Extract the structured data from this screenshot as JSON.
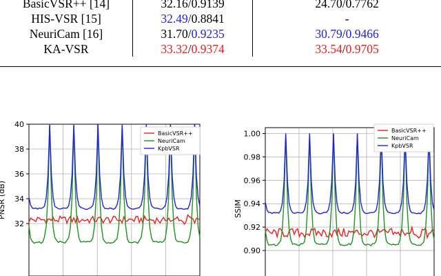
{
  "table": {
    "rows": [
      {
        "method": "BasicVSR++ [14]",
        "a_psnr": "32.16",
        "a_ssim": "0.9139",
        "b_psnr": "24.70",
        "b_ssim": "0.7762",
        "b_text": ""
      },
      {
        "method": "HIS-VSR [15]",
        "a_psnr": "32.49",
        "a_ssim": "0.8841",
        "b_psnr": "",
        "b_ssim": "",
        "b_text": "-"
      },
      {
        "method": "NeuriCam [16]",
        "a_psnr": "31.70",
        "a_ssim": "0.9235",
        "b_psnr": "30.79",
        "b_ssim": "0.9466",
        "b_text": ""
      },
      {
        "method": "KA-VSR",
        "a_psnr": "33.32",
        "a_ssim": "0.9374",
        "b_psnr": "33.54",
        "b_ssim": "0.9705",
        "b_text": ""
      }
    ],
    "separator": "/"
  },
  "colors": {
    "highlight_best": "#e8201f",
    "highlight_second": "#2222dd",
    "basicvsr": "#e8201f",
    "neuricam": "#1f8f1f",
    "kpbvsr": "#1f1fdd"
  },
  "chart_data": [
    {
      "type": "line",
      "ylabel": "PNSR (dB)",
      "ylim": [
        30,
        40
      ],
      "yticks": [
        "40",
        "38",
        "36",
        "34",
        "32"
      ],
      "yticks_values": [
        40,
        38,
        36,
        34,
        32
      ],
      "grid": true,
      "legend_position": "top-right",
      "series": [
        {
          "name": "BasicVSR++",
          "baseline": 32.3,
          "amplitude": 0.3
        },
        {
          "name": "NeuriCam",
          "peak": 40,
          "valley": 30.5,
          "period_samples": 14
        },
        {
          "name": "KpbVSR",
          "peak": 40,
          "valley": 33.2,
          "period_samples": 14
        }
      ]
    },
    {
      "type": "line",
      "ylabel": "SSIM",
      "ylim": [
        0.89,
        1.005
      ],
      "yticks": [
        "1.00",
        "0.98",
        "0.96",
        "0.94",
        "0.92",
        "0.90"
      ],
      "yticks_values": [
        1.0,
        0.98,
        0.96,
        0.94,
        0.92,
        0.9
      ],
      "grid": true,
      "legend_position": "top-right",
      "series": [
        {
          "name": "BasicVSR++",
          "baseline": 0.915,
          "amplitude": 0.004
        },
        {
          "name": "NeuriCam",
          "peak": 1.0,
          "valley": 0.905,
          "period_samples": 14
        },
        {
          "name": "KpbVSR",
          "peak": 1.0,
          "valley": 0.932,
          "period_samples": 14
        }
      ]
    }
  ]
}
